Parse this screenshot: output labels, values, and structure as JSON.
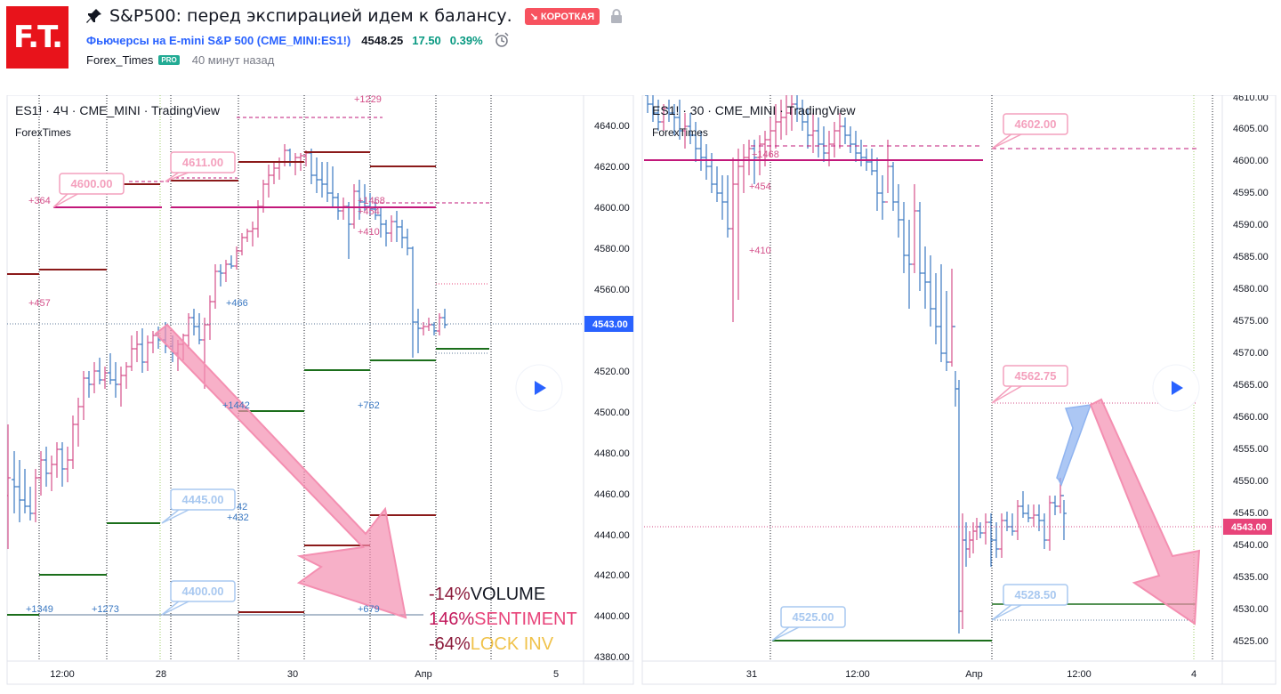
{
  "header": {
    "logo_text": "F.T.",
    "title": "S&P500: перед экспирацией идем к балансу.",
    "badge": "↘ КОРОТКАЯ",
    "symbol_link": "Фьючерсы на E-mini S&P 500 (CME_MINI:ES1!)",
    "price": "4548.25",
    "change": "17.50",
    "change_pct": "0.39%",
    "author": "Forex_Times",
    "pro": "PRO",
    "time_ago": "40 минут назад"
  },
  "left_chart": {
    "legend": "ES1! · 4Ч · CME_MINI · TradingView",
    "watermark": "ForexTimes",
    "y_ticks": [
      "4640.00",
      "4620.00",
      "4600.00",
      "4580.00",
      "4560.00",
      "4543.00",
      "4520.00",
      "4500.00",
      "4480.00",
      "4460.00",
      "4440.00",
      "4420.00",
      "4400.00",
      "4380.00"
    ],
    "price_tag": "4543.00",
    "x_ticks": [
      "12:00",
      "28",
      "30",
      "Апр",
      "5"
    ],
    "callouts": [
      "4600.00",
      "4611.00",
      "4445.00",
      "4400.00"
    ],
    "small_labels": [
      "+1229",
      "+364",
      "+457",
      "+466",
      "+1442",
      "+432",
      "+1349",
      "+1273",
      "+1468",
      "+454",
      "+410",
      "+762",
      "+679",
      "42"
    ],
    "sentiment": [
      {
        "pct": "-14%",
        "label": "VOLUME",
        "pct_color": "#8b1a3a",
        "label_color": "#131722"
      },
      {
        "pct": "146%",
        "label": "SENTIMENT",
        "pct_color": "#c2185b",
        "label_color": "#e8447a"
      },
      {
        "pct": "-64%",
        "label": "LOCK INV",
        "pct_color": "#8b1a3a",
        "label_color": "#f0c24a"
      }
    ]
  },
  "right_chart": {
    "legend": "ES1! · 30 · CME_MINI · TradingView",
    "watermark": "ForexTimes",
    "y_ticks": [
      "4610.00",
      "4605.00",
      "4600.00",
      "4595.00",
      "4590.00",
      "4585.00",
      "4580.00",
      "4575.00",
      "4570.00",
      "4565.00",
      "4560.00",
      "4555.00",
      "4550.00",
      "4545.00",
      "4543.00",
      "4540.00",
      "4535.00",
      "4530.00",
      "4525.00"
    ],
    "price_tag": "4543.00",
    "x_ticks": [
      "31",
      "12:00",
      "Апр",
      "12:00",
      "4"
    ],
    "callouts": [
      "4602.00",
      "4562.75",
      "4528.50",
      "4525.00"
    ],
    "small_labels": [
      "+1468",
      "+454",
      "+410"
    ]
  },
  "colors": {
    "up": "#3a78c2",
    "down": "#d4508a",
    "magenta_line": "#c2187a",
    "darkred_line": "#8b1a1a",
    "green_line": "#1b6e1b",
    "arrow_pink": "#f48fb1",
    "arrow_blue": "#90b4f0",
    "price_tag_blue": "#2962ff",
    "price_tag_red": "#e8447a"
  }
}
